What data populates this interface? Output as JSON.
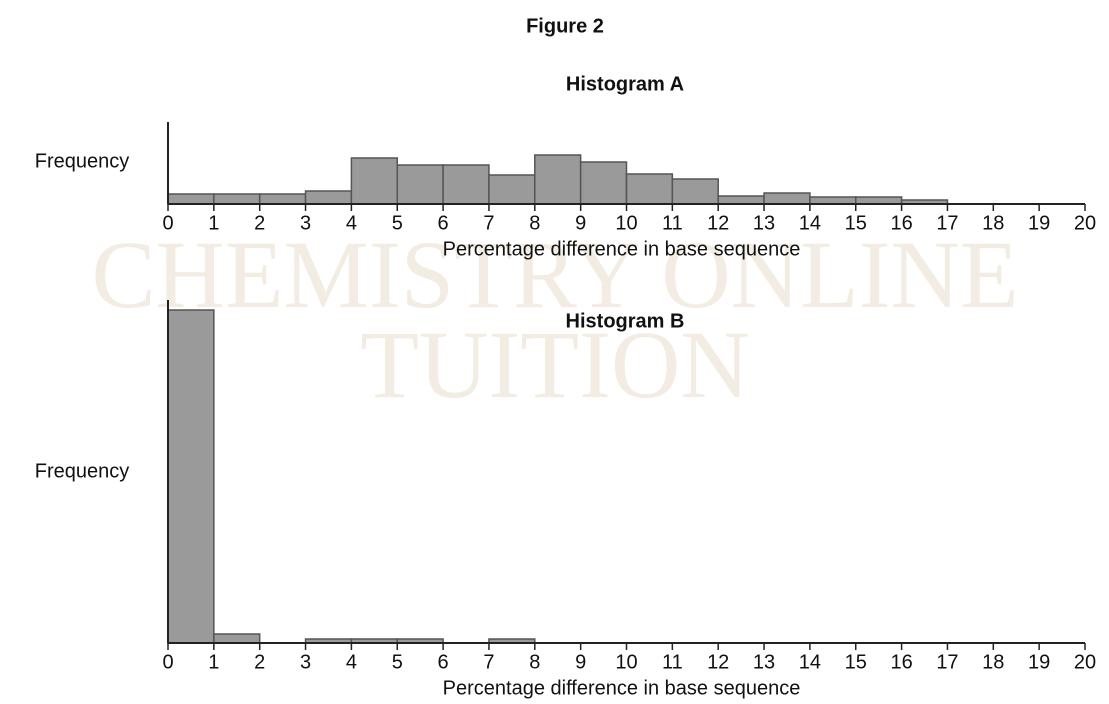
{
  "title": "Figure 2",
  "watermark": [
    "CHEMISTRY ONLINE",
    "TUITION"
  ],
  "chart_data": [
    {
      "type": "histogram",
      "title": "Histogram A",
      "ylabel": "Frequency",
      "xlabel": "Percentage difference in base sequence",
      "bins": [
        0,
        1,
        2,
        3,
        4,
        5,
        6,
        7,
        8,
        9,
        10,
        11,
        12,
        13,
        14,
        15,
        16,
        17,
        18,
        19,
        20
      ],
      "values": [
        10,
        10,
        10,
        13,
        46,
        39,
        39,
        29,
        49,
        42,
        30,
        25,
        8,
        11,
        7,
        7,
        4,
        0,
        0,
        0
      ],
      "color": "#9a9a9a",
      "xlim": [
        0,
        20
      ],
      "ylim": [
        0,
        82
      ],
      "xticks": [
        0,
        1,
        2,
        3,
        4,
        5,
        6,
        7,
        8,
        9,
        10,
        11,
        12,
        13,
        14,
        15,
        16,
        17,
        18,
        19,
        20
      ]
    },
    {
      "type": "histogram",
      "title": "Histogram B",
      "ylabel": "Frequency",
      "xlabel": "Percentage difference in base sequence",
      "bins": [
        0,
        1,
        2,
        3,
        4,
        5,
        6,
        7,
        8,
        9,
        10,
        11,
        12,
        13,
        14,
        15,
        16,
        17,
        18,
        19,
        20
      ],
      "values": [
        333,
        9,
        0,
        4,
        4,
        4,
        0,
        4,
        0,
        0,
        0,
        0,
        0,
        0,
        0,
        0,
        0,
        0,
        0,
        0
      ],
      "color": "#9a9a9a",
      "xlim": [
        0,
        20
      ],
      "ylim": [
        0,
        343
      ],
      "xticks": [
        0,
        1,
        2,
        3,
        4,
        5,
        6,
        7,
        8,
        9,
        10,
        11,
        12,
        13,
        14,
        15,
        16,
        17,
        18,
        19,
        20
      ]
    }
  ]
}
